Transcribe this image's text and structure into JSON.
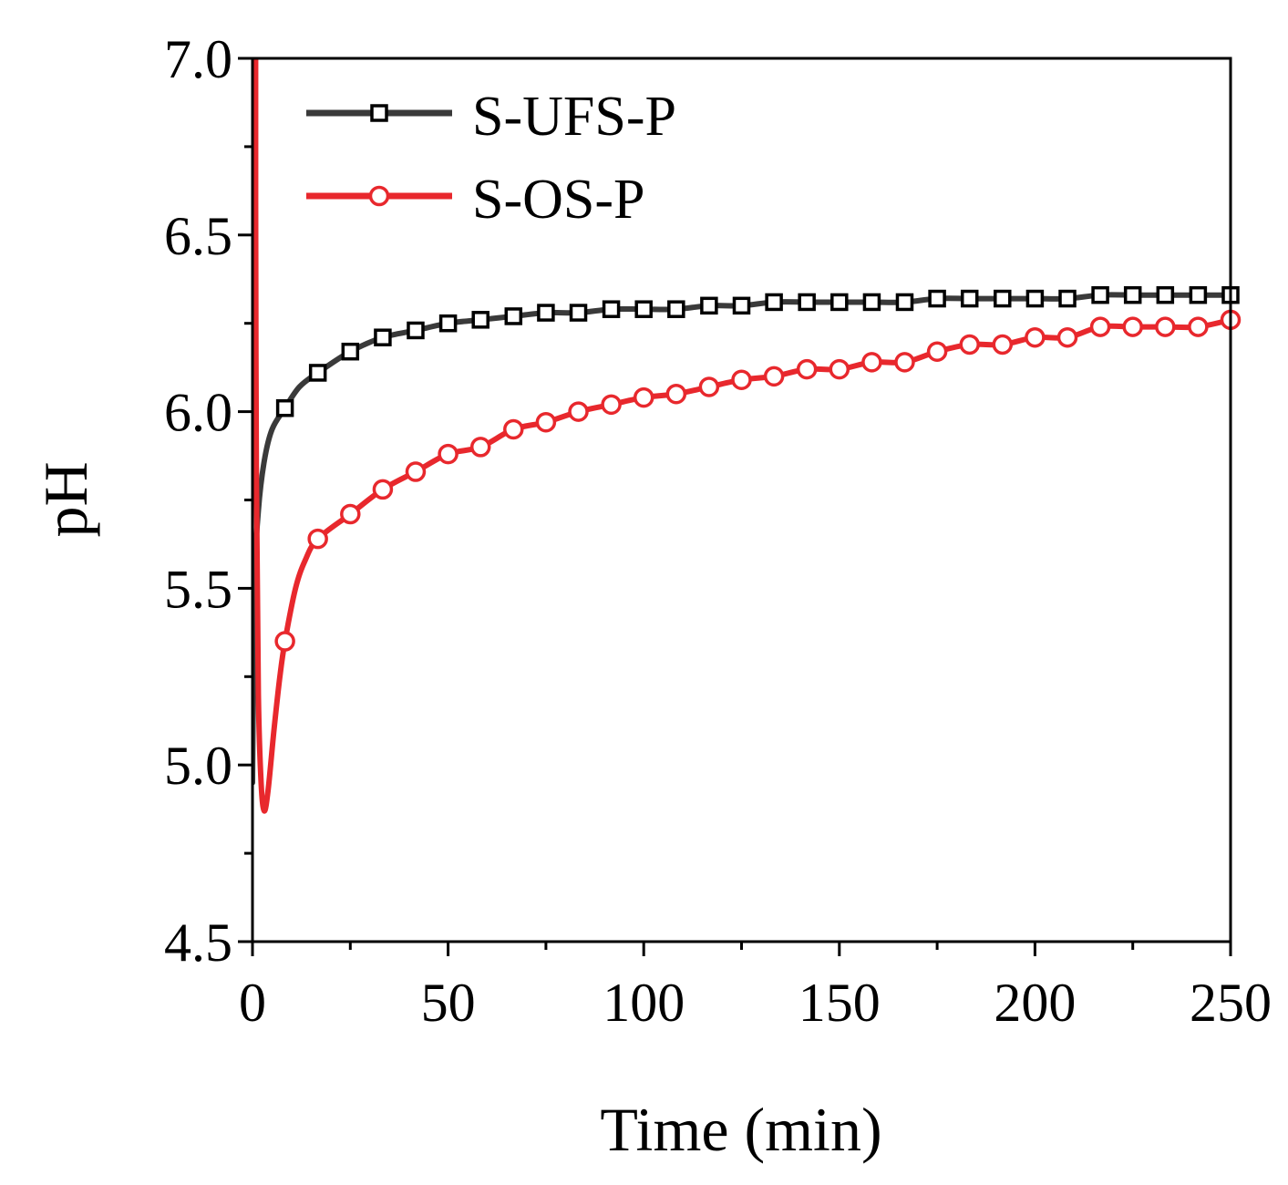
{
  "chart_data": {
    "type": "line",
    "title": "",
    "xlabel": "Time (min)",
    "ylabel": "pH",
    "xlim": [
      0,
      250
    ],
    "ylim": [
      4.5,
      7.0
    ],
    "xticks": [
      0,
      50,
      100,
      150,
      200,
      250
    ],
    "xtick_labels": [
      "0",
      "50",
      "100",
      "150",
      "200",
      "250"
    ],
    "yticks": [
      4.5,
      5.0,
      5.5,
      6.0,
      6.5,
      7.0
    ],
    "ytick_labels": [
      "4.5",
      "5.0",
      "5.5",
      "6.0",
      "6.5",
      "7.0"
    ],
    "grid": false,
    "legend_position": "top-left",
    "series": [
      {
        "name": "S-UFS-P",
        "color": "#3a3a3a",
        "marker": "square",
        "curve": [
          [
            0,
            4.95
          ],
          [
            0.5,
            5.5
          ],
          [
            1.5,
            5.72
          ],
          [
            3,
            5.86
          ],
          [
            5,
            5.95
          ],
          [
            8.3,
            6.01
          ],
          [
            12,
            6.07
          ],
          [
            16.7,
            6.11
          ],
          [
            25,
            6.17
          ],
          [
            33.3,
            6.21
          ],
          [
            41.7,
            6.23
          ],
          [
            50,
            6.25
          ],
          [
            58.3,
            6.26
          ],
          [
            66.7,
            6.27
          ],
          [
            75,
            6.28
          ],
          [
            83.3,
            6.28
          ],
          [
            91.7,
            6.29
          ],
          [
            100,
            6.29
          ],
          [
            108.3,
            6.29
          ],
          [
            116.7,
            6.3
          ],
          [
            125,
            6.3
          ],
          [
            133.3,
            6.31
          ],
          [
            141.7,
            6.31
          ],
          [
            150,
            6.31
          ],
          [
            158.3,
            6.31
          ],
          [
            166.7,
            6.31
          ],
          [
            175,
            6.32
          ],
          [
            183.3,
            6.32
          ],
          [
            191.7,
            6.32
          ],
          [
            200,
            6.32
          ],
          [
            208.3,
            6.32
          ],
          [
            216.7,
            6.33
          ],
          [
            225,
            6.33
          ],
          [
            233.3,
            6.33
          ],
          [
            241.7,
            6.33
          ],
          [
            250,
            6.33
          ]
        ],
        "markers": [
          [
            8.3,
            6.01
          ],
          [
            16.7,
            6.11
          ],
          [
            25,
            6.17
          ],
          [
            33.3,
            6.21
          ],
          [
            41.7,
            6.23
          ],
          [
            50,
            6.25
          ],
          [
            58.3,
            6.26
          ],
          [
            66.7,
            6.27
          ],
          [
            75,
            6.28
          ],
          [
            83.3,
            6.28
          ],
          [
            91.7,
            6.29
          ],
          [
            100,
            6.29
          ],
          [
            108.3,
            6.29
          ],
          [
            116.7,
            6.3
          ],
          [
            125,
            6.3
          ],
          [
            133.3,
            6.31
          ],
          [
            141.7,
            6.31
          ],
          [
            150,
            6.31
          ],
          [
            158.3,
            6.31
          ],
          [
            166.7,
            6.31
          ],
          [
            175,
            6.32
          ],
          [
            183.3,
            6.32
          ],
          [
            191.7,
            6.32
          ],
          [
            200,
            6.32
          ],
          [
            208.3,
            6.32
          ],
          [
            216.7,
            6.33
          ],
          [
            225,
            6.33
          ],
          [
            233.3,
            6.33
          ],
          [
            241.7,
            6.33
          ],
          [
            250,
            6.33
          ]
        ]
      },
      {
        "name": "S-OS-P",
        "color": "#e8282d",
        "marker": "circle",
        "curve": [
          [
            0.8,
            7.0
          ],
          [
            0.8,
            6.6
          ],
          [
            1,
            5.8
          ],
          [
            1.5,
            5.2
          ],
          [
            2.2,
            4.95
          ],
          [
            3,
            4.87
          ],
          [
            4,
            4.93
          ],
          [
            5.5,
            5.1
          ],
          [
            7,
            5.25
          ],
          [
            8.3,
            5.35
          ],
          [
            11,
            5.5
          ],
          [
            13.5,
            5.58
          ],
          [
            16.7,
            5.64
          ],
          [
            25,
            5.71
          ],
          [
            33.3,
            5.78
          ],
          [
            41.7,
            5.83
          ],
          [
            50,
            5.88
          ],
          [
            58.3,
            5.9
          ],
          [
            66.7,
            5.95
          ],
          [
            75,
            5.97
          ],
          [
            83.3,
            6.0
          ],
          [
            91.7,
            6.02
          ],
          [
            100,
            6.04
          ],
          [
            108.3,
            6.05
          ],
          [
            116.7,
            6.07
          ],
          [
            125,
            6.09
          ],
          [
            133.3,
            6.1
          ],
          [
            141.7,
            6.12
          ],
          [
            150,
            6.12
          ],
          [
            158.3,
            6.14
          ],
          [
            166.7,
            6.14
          ],
          [
            175,
            6.17
          ],
          [
            183.3,
            6.19
          ],
          [
            191.7,
            6.19
          ],
          [
            200,
            6.21
          ],
          [
            208.3,
            6.21
          ],
          [
            216.7,
            6.24
          ],
          [
            225,
            6.24
          ],
          [
            233.3,
            6.24
          ],
          [
            241.7,
            6.24
          ],
          [
            250,
            6.26
          ]
        ],
        "markers": [
          [
            8.3,
            5.35
          ],
          [
            16.7,
            5.64
          ],
          [
            25,
            5.71
          ],
          [
            33.3,
            5.78
          ],
          [
            41.7,
            5.83
          ],
          [
            50,
            5.88
          ],
          [
            58.3,
            5.9
          ],
          [
            66.7,
            5.95
          ],
          [
            75,
            5.97
          ],
          [
            83.3,
            6.0
          ],
          [
            91.7,
            6.02
          ],
          [
            100,
            6.04
          ],
          [
            108.3,
            6.05
          ],
          [
            116.7,
            6.07
          ],
          [
            125,
            6.09
          ],
          [
            133.3,
            6.1
          ],
          [
            141.7,
            6.12
          ],
          [
            150,
            6.12
          ],
          [
            158.3,
            6.14
          ],
          [
            166.7,
            6.14
          ],
          [
            175,
            6.17
          ],
          [
            183.3,
            6.19
          ],
          [
            191.7,
            6.19
          ],
          [
            200,
            6.21
          ],
          [
            208.3,
            6.21
          ],
          [
            216.7,
            6.24
          ],
          [
            225,
            6.24
          ],
          [
            233.3,
            6.24
          ],
          [
            241.7,
            6.24
          ],
          [
            250,
            6.26
          ]
        ]
      }
    ]
  }
}
